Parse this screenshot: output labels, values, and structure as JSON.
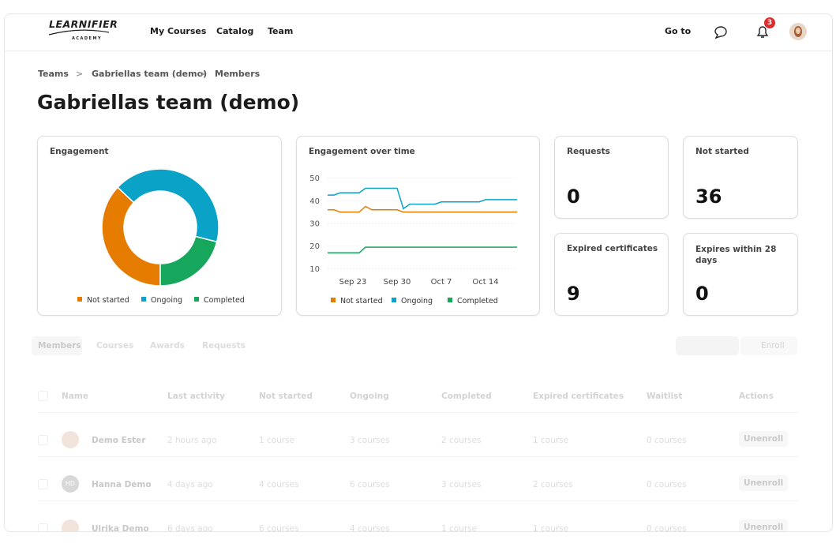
{
  "nav": {
    "logo": "LEARNIFIER",
    "logo_sub": "ACADEMY",
    "links": [
      "My Courses",
      "Catalog",
      "Team"
    ],
    "goto": "Go to",
    "notification_count": 3
  },
  "breadcrumb": [
    "Teams",
    "Gabriellas team (demo)",
    "Members"
  ],
  "title": "Gabriellas team (demo)",
  "engagement": {
    "chart_data": {
      "type": "pie",
      "title": "Engagement",
      "categories": [
        "Not started",
        "Ongoing",
        "Completed"
      ],
      "values": [
        37,
        42,
        21
      ],
      "colors": [
        "#e57c00",
        "#0aa2c6",
        "#16a75c"
      ],
      "donut": true
    }
  },
  "engagement_over_time": {
    "chart_data": {
      "type": "line",
      "title": "Engagement over time",
      "categories": [
        null,
        null,
        null,
        null,
        "Sep 23",
        null,
        null,
        null,
        null,
        null,
        null,
        "Sep 30",
        null,
        null,
        null,
        null,
        null,
        null,
        "Oct 7",
        null,
        null,
        null,
        null,
        null,
        null,
        "Oct 14",
        null,
        null,
        null,
        null,
        null
      ],
      "ylim": [
        7,
        53
      ],
      "yticks": [
        10,
        20,
        30,
        40,
        50
      ],
      "grid": true,
      "series": [
        {
          "name": "Not started",
          "color": "#e57c00",
          "values": [
            36,
            36,
            35,
            35,
            35,
            35,
            37.5,
            36,
            36,
            36,
            36,
            36,
            35,
            35,
            35,
            35,
            35,
            35,
            35,
            35,
            35,
            35,
            35,
            35,
            35,
            35,
            35,
            35,
            35,
            35,
            35
          ]
        },
        {
          "name": "Ongoing",
          "color": "#0aa2c6",
          "values": [
            42.5,
            42.5,
            43.5,
            43.5,
            43.5,
            43.5,
            45.5,
            45.5,
            45.5,
            45.5,
            45.5,
            45.5,
            36.5,
            38.5,
            38.5,
            38.5,
            38.5,
            38.5,
            39.5,
            39.5,
            39.5,
            39.5,
            39.5,
            39.5,
            39.5,
            40.5,
            40.5,
            40.5,
            40.5,
            40.5,
            40.5
          ]
        },
        {
          "name": "Completed",
          "color": "#16a75c",
          "values": [
            17,
            17,
            17,
            17,
            17,
            17,
            19.5,
            19.5,
            19.5,
            19.5,
            19.5,
            19.5,
            19.5,
            19.5,
            19.5,
            19.5,
            19.5,
            19.5,
            19.5,
            19.5,
            19.5,
            19.5,
            19.5,
            19.5,
            19.5,
            19.5,
            19.5,
            19.5,
            19.5,
            19.5,
            19.5
          ]
        }
      ]
    }
  },
  "stats": [
    {
      "label": "Requests",
      "value": 0
    },
    {
      "label": "Not started",
      "value": 36
    },
    {
      "label": "Expired certificates",
      "value": 9
    },
    {
      "label": "Expires within 28 days",
      "value": 0
    }
  ],
  "tabs": [
    "Members",
    "Courses",
    "Awards",
    "Requests"
  ],
  "enroll_button": "Enroll",
  "table": {
    "columns": [
      "Name",
      "Last activity",
      "Not started",
      "Ongoing",
      "Completed",
      "Expired certificates",
      "Waitlist",
      "Actions"
    ],
    "rows": [
      {
        "initials": null,
        "cells": [
          "Demo Ester",
          "2 hours ago",
          "1 course",
          "3 courses",
          "2 courses",
          "1 course",
          "0 courses",
          "Unenroll"
        ]
      },
      {
        "initials": "HD",
        "cells": [
          "Hanna Demo",
          "4 days ago",
          "4 courses",
          "6 courses",
          "3 courses",
          "2 courses",
          "0 courses",
          "Unenroll"
        ]
      },
      {
        "initials": null,
        "cells": [
          "Ulrika Demo",
          "6 days ago",
          "6 courses",
          "4 courses",
          "1 course",
          "1 course",
          "0 courses",
          "Unenroll"
        ]
      }
    ]
  }
}
